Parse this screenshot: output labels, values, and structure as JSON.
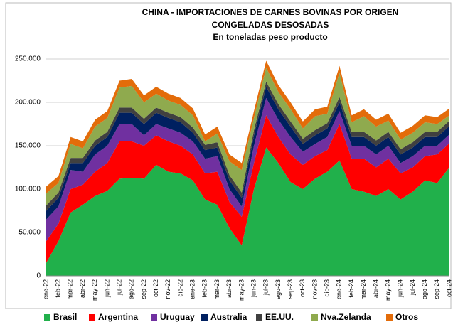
{
  "chart_data": {
    "type": "stacked_area",
    "title": "CHINA - IMPORTACIONES DE CARNES BOVINAS POR ORIGEN",
    "subtitle": "CONGELADAS DESOSADAS",
    "note": "En toneladas peso producto",
    "categories": [
      "ene-22",
      "feb-22",
      "mar-22",
      "abr-22",
      "may-22",
      "jun-22",
      "jul-22",
      "ago-22",
      "sep-22",
      "oct-22",
      "nov-22",
      "dic-22",
      "ene-23",
      "feb-23",
      "mar-23",
      "abr-23",
      "may-23",
      "jun-23",
      "jul-23",
      "ago-23",
      "sep-23",
      "oct-23",
      "nov-23",
      "dic-23",
      "ene-24",
      "feb-24",
      "mar-24",
      "abr-24",
      "may-24",
      "jun-24",
      "jul-24",
      "ago-24",
      "sep-24",
      "oct-24"
    ],
    "series": [
      {
        "name": "Brasil",
        "color": "#21b04b",
        "values": [
          15000,
          40000,
          73000,
          82000,
          92000,
          98000,
          112000,
          113000,
          112000,
          128000,
          120000,
          118000,
          110000,
          88000,
          82000,
          55000,
          35000,
          100000,
          148000,
          130000,
          108000,
          100000,
          112000,
          120000,
          133000,
          100000,
          97000,
          92000,
          100000,
          88000,
          97000,
          110000,
          107000,
          125000
        ]
      },
      {
        "name": "Argentina",
        "color": "#ff0000",
        "values": [
          25000,
          20000,
          27000,
          23000,
          28000,
          32000,
          43000,
          42000,
          38000,
          34000,
          35000,
          32000,
          30000,
          30000,
          38000,
          30000,
          33000,
          30000,
          37000,
          30000,
          32000,
          28000,
          26000,
          25000,
          42000,
          35000,
          38000,
          33000,
          35000,
          30000,
          28000,
          28000,
          33000,
          28000
        ]
      },
      {
        "name": "Uruguay",
        "color": "#7030a0",
        "values": [
          25000,
          20000,
          22000,
          15000,
          20000,
          20000,
          20000,
          20000,
          12000,
          13000,
          15000,
          15000,
          15000,
          17000,
          18000,
          15000,
          12000,
          20000,
          20000,
          20000,
          20000,
          15000,
          14000,
          15000,
          15000,
          15000,
          15000,
          15000,
          15000,
          12000,
          13000,
          12000,
          10000,
          10000
        ]
      },
      {
        "name": "Australia",
        "color": "#002060",
        "values": [
          10000,
          10000,
          8000,
          10000,
          10000,
          10000,
          13000,
          13000,
          13000,
          13000,
          12000,
          12000,
          10000,
          10000,
          10000,
          10000,
          10000,
          12000,
          13000,
          12000,
          12000,
          9000,
          10000,
          10000,
          10000,
          10000,
          10000,
          10000,
          10000,
          10000,
          10000,
          10000,
          10000,
          10000
        ]
      },
      {
        "name": "EE.UU.",
        "color": "#404040",
        "values": [
          6000,
          6000,
          6000,
          6000,
          6000,
          6000,
          6000,
          6000,
          6000,
          6000,
          6000,
          6000,
          6000,
          6000,
          6000,
          6000,
          6000,
          6000,
          6000,
          6000,
          6000,
          6000,
          6000,
          6000,
          6000,
          6000,
          6000,
          6000,
          6000,
          6000,
          6000,
          6000,
          6000,
          6000
        ]
      },
      {
        "name": "Nva.Zelanda",
        "color": "#8faa4e",
        "values": [
          14000,
          11000,
          16000,
          11000,
          16000,
          16000,
          23000,
          25000,
          19000,
          16000,
          14000,
          14000,
          14000,
          4000,
          10000,
          16000,
          26000,
          14000,
          16000,
          14000,
          14000,
          12000,
          16000,
          11000,
          28000,
          11000,
          18000,
          16000,
          13000,
          11000,
          11000,
          11000,
          9000,
          6000
        ]
      },
      {
        "name": "Otros",
        "color": "#e36c0a",
        "values": [
          8000,
          8000,
          8000,
          8000,
          8000,
          8000,
          8000,
          8000,
          8000,
          8000,
          8000,
          8000,
          8000,
          8000,
          8000,
          8000,
          8000,
          8000,
          8000,
          8000,
          8000,
          8000,
          8000,
          8000,
          8000,
          8000,
          8000,
          8000,
          8000,
          8000,
          8000,
          8000,
          8000,
          8000
        ]
      }
    ],
    "ylim": [
      0,
      250000
    ],
    "yticks": [
      0,
      {
        "value": 50000,
        "label": "50.000"
      },
      {
        "value": 100000,
        "label": "100.000"
      },
      {
        "value": 150000,
        "label": "150.000"
      },
      {
        "value": 200000,
        "label": "200.000"
      },
      {
        "value": 250000,
        "label": "250.000"
      }
    ],
    "grid": true,
    "legend": "bottom"
  }
}
